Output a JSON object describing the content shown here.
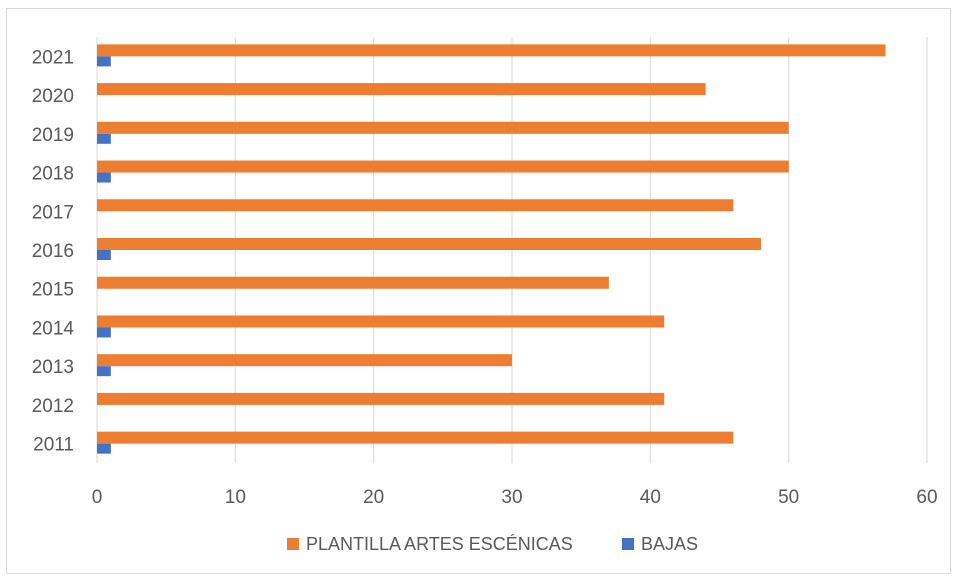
{
  "chart_data": {
    "type": "bar",
    "orientation": "horizontal",
    "categories": [
      "2011",
      "2012",
      "2013",
      "2014",
      "2015",
      "2016",
      "2017",
      "2018",
      "2019",
      "2020",
      "2021"
    ],
    "series": [
      {
        "name": "PLANTILLA ARTES ESCÉNICAS",
        "color": "#ED7D31",
        "values": [
          46,
          41,
          30,
          41,
          37,
          48,
          46,
          50,
          50,
          44,
          57
        ]
      },
      {
        "name": "BAJAS",
        "color": "#4472C4",
        "values": [
          1,
          0,
          1,
          1,
          0,
          1,
          0,
          1,
          1,
          0,
          1
        ]
      }
    ],
    "xlim": [
      0,
      60
    ],
    "x_ticks": [
      0,
      10,
      20,
      30,
      40,
      50,
      60
    ],
    "grid": "vertical",
    "legend": "bottom"
  }
}
